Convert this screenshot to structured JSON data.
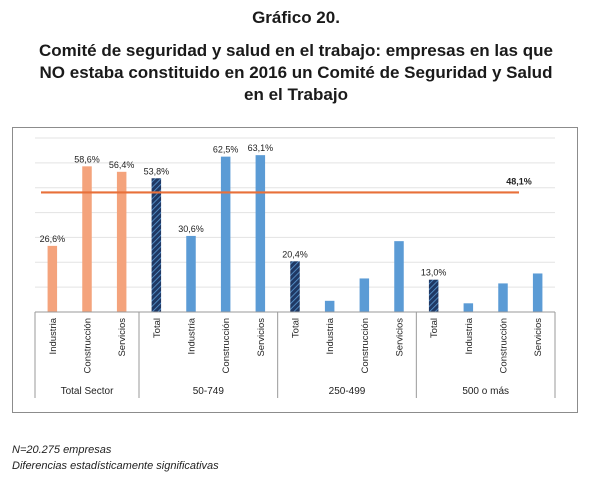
{
  "figure": {
    "number": "Gráfico 20.",
    "title_line1": "Comité de seguridad y salud en el trabajo: empresas en las que",
    "title_line2": "NO estaba constituido en 2016 un Comité de Seguridad y Salud",
    "title_line3": "en el Trabajo"
  },
  "notes": {
    "line1": "N=20.275 empresas",
    "line2": "Diferencias estadísticamente significativas"
  },
  "colors": {
    "sector": "#f4a37c",
    "size": "#5b9bd5",
    "total": "#1f3864",
    "reference": "#e8703a",
    "grid": "#e3e3e3"
  },
  "chart_data": {
    "type": "bar",
    "ylim": [
      0,
      70
    ],
    "grid": true,
    "reference_line": {
      "value": 48.1,
      "label": "48,1%"
    },
    "groups": [
      {
        "name": "Total Sector",
        "bars": [
          {
            "category": "Industria",
            "value": 26.6,
            "label": "26,6%",
            "style": "sector"
          },
          {
            "category": "Construcción",
            "value": 58.6,
            "label": "58,6%",
            "style": "sector"
          },
          {
            "category": "Servicios",
            "value": 56.4,
            "label": "56,4%",
            "style": "sector"
          }
        ]
      },
      {
        "name": "50-749",
        "bars": [
          {
            "category": "Total",
            "value": 53.8,
            "label": "53,8%",
            "style": "total"
          },
          {
            "category": "Industria",
            "value": 30.6,
            "label": "30,6%",
            "style": "size"
          },
          {
            "category": "Construcción",
            "value": 62.5,
            "label": "62,5%",
            "style": "size"
          },
          {
            "category": "Servicios",
            "value": 63.1,
            "label": "63,1%",
            "style": "size"
          }
        ]
      },
      {
        "name": "250-499",
        "bars": [
          {
            "category": "Total",
            "value": 20.4,
            "label": "20,4%",
            "style": "total"
          },
          {
            "category": "Industria",
            "value": 4.5,
            "label": "",
            "style": "size"
          },
          {
            "category": "Construcción",
            "value": 13.5,
            "label": "",
            "style": "size"
          },
          {
            "category": "Servicios",
            "value": 28.5,
            "label": "",
            "style": "size"
          }
        ]
      },
      {
        "name": "500 o más",
        "bars": [
          {
            "category": "Total",
            "value": 13.0,
            "label": "13,0%",
            "style": "total"
          },
          {
            "category": "Industria",
            "value": 3.5,
            "label": "",
            "style": "size"
          },
          {
            "category": "Construcción",
            "value": 11.5,
            "label": "",
            "style": "size"
          },
          {
            "category": "Servicios",
            "value": 15.5,
            "label": "",
            "style": "size"
          }
        ]
      }
    ]
  }
}
